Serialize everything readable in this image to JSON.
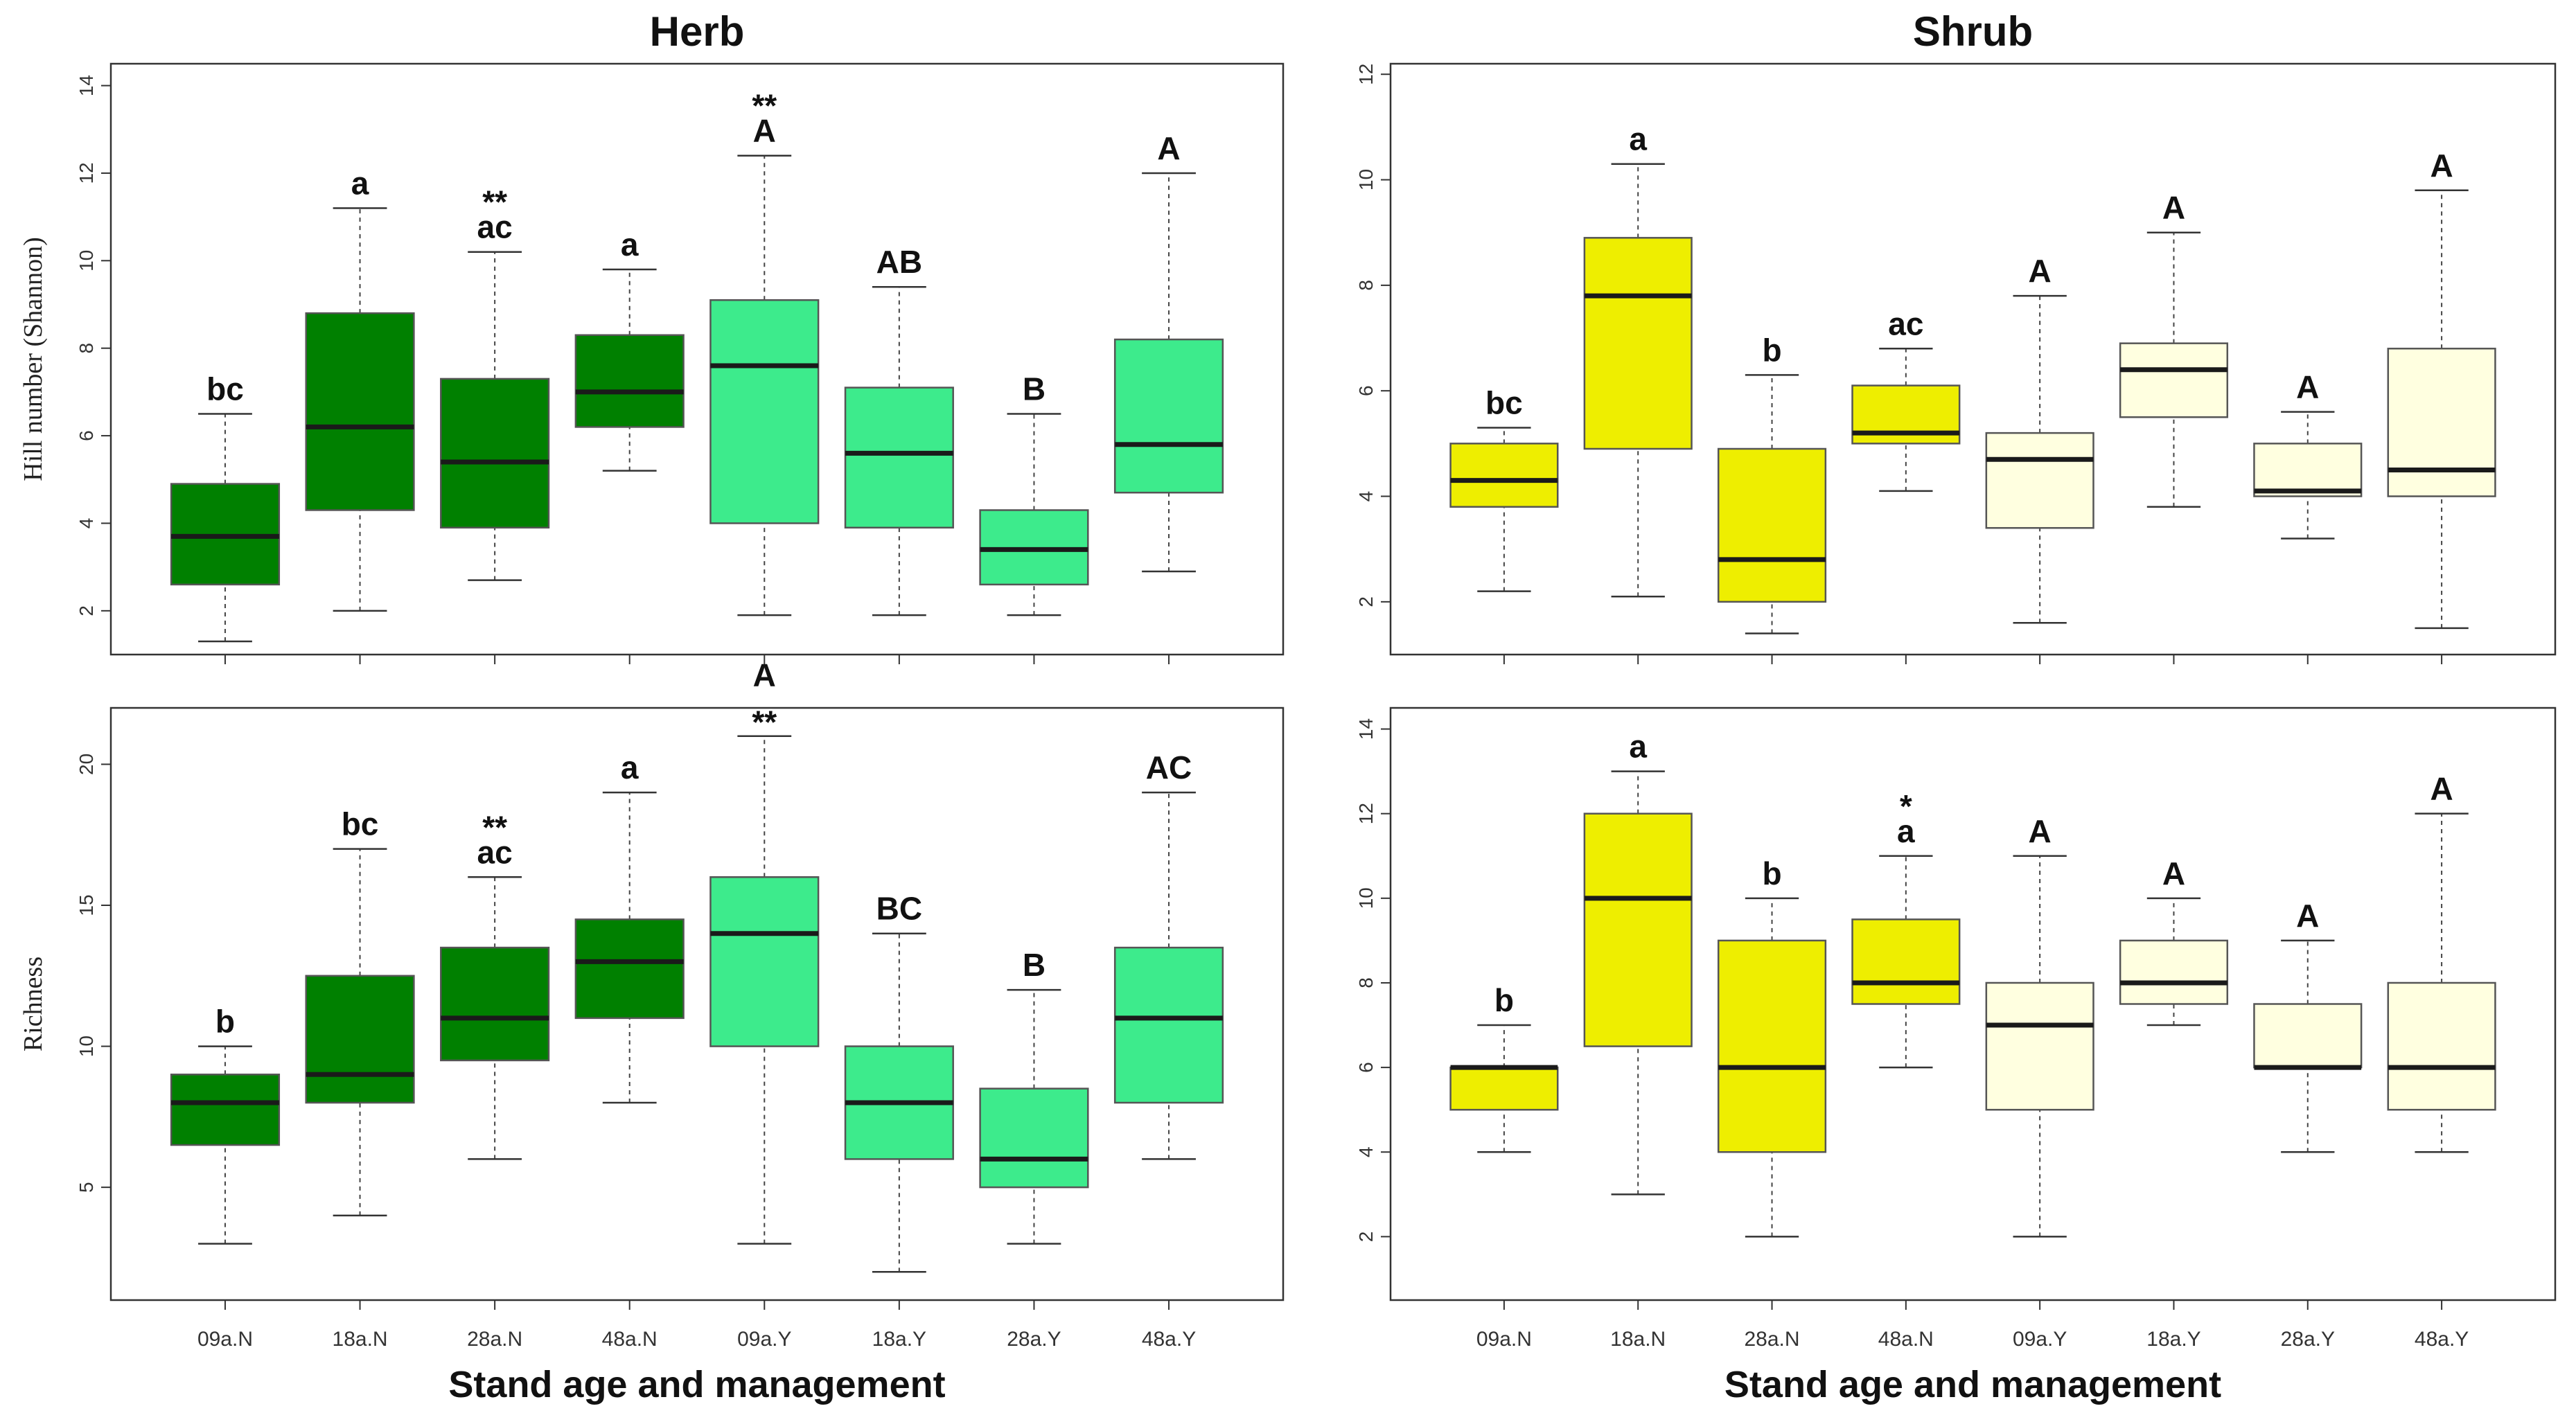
{
  "figure": {
    "xlabel": "Stand age and management",
    "categories": [
      "09a.N",
      "18a.N",
      "28a.N",
      "48a.N",
      "09a.Y",
      "18a.Y",
      "28a.Y",
      "48a.Y"
    ],
    "colors": {
      "herb_N": "#008000",
      "herb_Y": "#3DEB8C",
      "shrub_N": "#EEEE00",
      "shrub_Y": "#FFFFE0",
      "outline": "#555555",
      "median": "#1a1a1a"
    }
  },
  "chart_data": [
    {
      "type": "box",
      "id": "herb_hill",
      "panel": "top-left",
      "title": "Herb",
      "xlabel": "",
      "ylabel": "Hill number (Shannon)",
      "ylim": [
        1,
        14.5
      ],
      "yticks": [
        2,
        4,
        6,
        8,
        10,
        12,
        14
      ],
      "show_cat_labels": false,
      "fill_keys": [
        "herb_N",
        "herb_N",
        "herb_N",
        "herb_N",
        "herb_Y",
        "herb_Y",
        "herb_Y",
        "herb_Y"
      ],
      "series": [
        {
          "category": "09a.N",
          "min": 1.3,
          "q1": 2.6,
          "median": 3.7,
          "q3": 4.9,
          "max": 6.5,
          "letters": [
            "bc"
          ]
        },
        {
          "category": "18a.N",
          "min": 2.0,
          "q1": 4.3,
          "median": 6.2,
          "q3": 8.8,
          "max": 11.2,
          "letters": [
            "a"
          ]
        },
        {
          "category": "28a.N",
          "min": 2.7,
          "q1": 3.9,
          "median": 5.4,
          "q3": 7.3,
          "max": 10.2,
          "letters": [
            "**",
            "ac"
          ]
        },
        {
          "category": "48a.N",
          "min": 5.2,
          "q1": 6.2,
          "median": 7.0,
          "q3": 8.3,
          "max": 9.8,
          "letters": [
            "a"
          ]
        },
        {
          "category": "09a.Y",
          "min": 1.9,
          "q1": 4.0,
          "median": 7.6,
          "q3": 9.1,
          "max": 12.4,
          "letters": [
            "**",
            "A"
          ]
        },
        {
          "category": "18a.Y",
          "min": 1.9,
          "q1": 3.9,
          "median": 5.6,
          "q3": 7.1,
          "max": 9.4,
          "letters": [
            "AB"
          ]
        },
        {
          "category": "28a.Y",
          "min": 1.9,
          "q1": 2.6,
          "median": 3.4,
          "q3": 4.3,
          "max": 6.5,
          "letters": [
            "B"
          ]
        },
        {
          "category": "48a.Y",
          "min": 2.9,
          "q1": 4.7,
          "median": 5.8,
          "q3": 8.2,
          "max": 12.0,
          "letters": [
            "A"
          ]
        }
      ]
    },
    {
      "type": "box",
      "id": "shrub_hill",
      "panel": "top-right",
      "title": "Shrub",
      "xlabel": "",
      "ylabel": "",
      "ylim": [
        1.0,
        12.2
      ],
      "yticks": [
        2,
        4,
        6,
        8,
        10,
        12
      ],
      "show_cat_labels": false,
      "fill_keys": [
        "shrub_N",
        "shrub_N",
        "shrub_N",
        "shrub_N",
        "shrub_Y",
        "shrub_Y",
        "shrub_Y",
        "shrub_Y"
      ],
      "series": [
        {
          "category": "09a.N",
          "min": 2.2,
          "q1": 3.8,
          "median": 4.3,
          "q3": 5.0,
          "max": 5.3,
          "letters": [
            "bc"
          ]
        },
        {
          "category": "18a.N",
          "min": 2.1,
          "q1": 4.9,
          "median": 7.8,
          "q3": 8.9,
          "max": 10.3,
          "letters": [
            "a"
          ]
        },
        {
          "category": "28a.N",
          "min": 1.4,
          "q1": 2.0,
          "median": 2.8,
          "q3": 4.9,
          "max": 6.3,
          "letters": [
            "b"
          ]
        },
        {
          "category": "48a.N",
          "min": 4.1,
          "q1": 5.0,
          "median": 5.2,
          "q3": 6.1,
          "max": 6.8,
          "letters": [
            "ac"
          ]
        },
        {
          "category": "09a.Y",
          "min": 1.6,
          "q1": 3.4,
          "median": 4.7,
          "q3": 5.2,
          "max": 7.8,
          "letters": [
            "A"
          ]
        },
        {
          "category": "18a.Y",
          "min": 3.8,
          "q1": 5.5,
          "median": 6.4,
          "q3": 6.9,
          "max": 9.0,
          "letters": [
            "A"
          ]
        },
        {
          "category": "28a.Y",
          "min": 3.2,
          "q1": 4.0,
          "median": 4.1,
          "q3": 5.0,
          "max": 5.6,
          "letters": [
            "A"
          ]
        },
        {
          "category": "48a.Y",
          "min": 1.5,
          "q1": 4.0,
          "median": 4.5,
          "q3": 6.8,
          "max": 9.8,
          "letters": [
            "A"
          ]
        }
      ]
    },
    {
      "type": "box",
      "id": "herb_richness",
      "panel": "bottom-left",
      "title": "",
      "xlabel": "Stand age and management",
      "ylabel": "Richness",
      "ylim": [
        1.0,
        22.0
      ],
      "yticks": [
        5,
        10,
        15,
        20
      ],
      "show_cat_labels": true,
      "fill_keys": [
        "herb_N",
        "herb_N",
        "herb_N",
        "herb_N",
        "herb_Y",
        "herb_Y",
        "herb_Y",
        "herb_Y"
      ],
      "series": [
        {
          "category": "09a.N",
          "min": 3,
          "q1": 6.5,
          "median": 8,
          "q3": 9,
          "max": 10,
          "letters": [
            "b"
          ]
        },
        {
          "category": "18a.N",
          "min": 4,
          "q1": 8,
          "median": 9,
          "q3": 12.5,
          "max": 17,
          "letters": [
            "bc"
          ]
        },
        {
          "category": "28a.N",
          "min": 6,
          "q1": 9.5,
          "median": 11,
          "q3": 13.5,
          "max": 16,
          "letters": [
            "**",
            "ac"
          ]
        },
        {
          "category": "48a.N",
          "min": 8,
          "q1": 11,
          "median": 13,
          "q3": 14.5,
          "max": 19,
          "letters": [
            "a"
          ]
        },
        {
          "category": "09a.Y",
          "min": 3,
          "q1": 10,
          "median": 14,
          "q3": 16,
          "max": 21,
          "letters": [
            "A",
            "**"
          ]
        },
        {
          "category": "18a.Y",
          "min": 2,
          "q1": 6,
          "median": 8,
          "q3": 10,
          "max": 14,
          "letters": [
            "BC"
          ]
        },
        {
          "category": "28a.Y",
          "min": 3,
          "q1": 5,
          "median": 6,
          "q3": 8.5,
          "max": 12,
          "letters": [
            "B"
          ]
        },
        {
          "category": "48a.Y",
          "min": 6,
          "q1": 8,
          "median": 11,
          "q3": 13.5,
          "max": 19,
          "letters": [
            "AC"
          ]
        }
      ]
    },
    {
      "type": "box",
      "id": "shrub_richness",
      "panel": "bottom-right",
      "title": "",
      "xlabel": "Stand age and management",
      "ylabel": "",
      "ylim": [
        0.5,
        14.5
      ],
      "yticks": [
        2,
        4,
        6,
        8,
        10,
        12,
        14
      ],
      "show_cat_labels": true,
      "fill_keys": [
        "shrub_N",
        "shrub_N",
        "shrub_N",
        "shrub_N",
        "shrub_Y",
        "shrub_Y",
        "shrub_Y",
        "shrub_Y"
      ],
      "series": [
        {
          "category": "09a.N",
          "min": 4,
          "q1": 5,
          "median": 6,
          "q3": 6,
          "max": 7,
          "letters": [
            "b"
          ]
        },
        {
          "category": "18a.N",
          "min": 3,
          "q1": 6.5,
          "median": 10,
          "q3": 12,
          "max": 13,
          "letters": [
            "a"
          ]
        },
        {
          "category": "28a.N",
          "min": 2,
          "q1": 4,
          "median": 6,
          "q3": 9,
          "max": 10,
          "letters": [
            "b"
          ]
        },
        {
          "category": "48a.N",
          "min": 6,
          "q1": 7.5,
          "median": 8,
          "q3": 9.5,
          "max": 11,
          "letters": [
            "*",
            "a"
          ]
        },
        {
          "category": "09a.Y",
          "min": 2,
          "q1": 5,
          "median": 7,
          "q3": 8,
          "max": 11,
          "letters": [
            "A"
          ]
        },
        {
          "category": "18a.Y",
          "min": 7,
          "q1": 7.5,
          "median": 8,
          "q3": 9,
          "max": 10,
          "letters": [
            "A"
          ]
        },
        {
          "category": "28a.Y",
          "min": 4,
          "q1": 6,
          "median": 6,
          "q3": 7.5,
          "max": 9,
          "letters": [
            "A"
          ]
        },
        {
          "category": "48a.Y",
          "min": 4,
          "q1": 5,
          "median": 6,
          "q3": 8,
          "max": 12,
          "letters": [
            "A"
          ]
        }
      ]
    }
  ]
}
